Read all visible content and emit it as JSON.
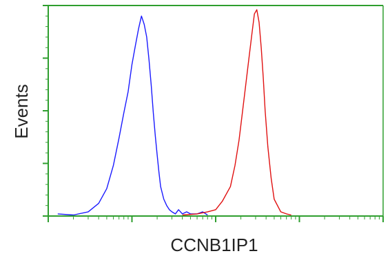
{
  "chart_data": {
    "type": "line",
    "title": "",
    "xlabel": "CCNB1IP1",
    "ylabel": "Events",
    "xscale": "log",
    "xlim": [
      1,
      10000
    ],
    "ylim": [
      0,
      100
    ],
    "grid": false,
    "legend": "none",
    "axis_color": "#2e9e2e",
    "series": [
      {
        "color": "#1a1aff",
        "x": [
          1.3,
          2,
          3,
          4,
          5,
          6,
          7,
          8,
          9,
          10,
          11,
          12,
          13,
          14,
          15,
          16,
          17,
          18,
          19,
          20,
          21,
          22,
          24,
          26,
          28,
          30,
          33,
          36,
          40,
          45,
          50,
          60,
          70,
          80
        ],
        "y": [
          1,
          0.5,
          2,
          6,
          13,
          24,
          37,
          49,
          59,
          72,
          81,
          89,
          95,
          91,
          85,
          74,
          62,
          49,
          38,
          29,
          21,
          14,
          8,
          5,
          3,
          2,
          1,
          3,
          1,
          2,
          1,
          1,
          2,
          0.5
        ]
      },
      {
        "color": "#e01010",
        "x": [
          40,
          60,
          80,
          100,
          120,
          150,
          170,
          190,
          210,
          230,
          250,
          270,
          290,
          310,
          330,
          350,
          370,
          390,
          420,
          460,
          500,
          600,
          700,
          800
        ],
        "y": [
          0.5,
          1,
          2,
          3,
          7,
          14,
          24,
          36,
          50,
          63,
          75,
          86,
          96,
          98,
          92,
          80,
          66,
          50,
          33,
          18,
          8,
          2,
          1,
          0.5
        ]
      }
    ]
  }
}
